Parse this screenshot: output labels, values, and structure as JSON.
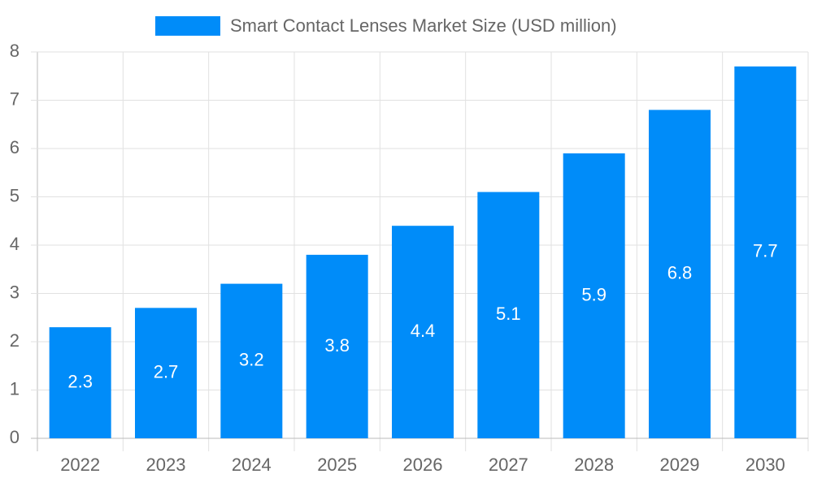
{
  "chart_data": {
    "type": "bar",
    "categories": [
      "2022",
      "2023",
      "2024",
      "2025",
      "2026",
      "2027",
      "2028",
      "2029",
      "2030"
    ],
    "series": [
      {
        "name": "Smart Contact Lenses Market Size (USD million)",
        "color": "#008cf9",
        "values": [
          2.3,
          2.7,
          3.2,
          3.8,
          4.4,
          5.1,
          5.9,
          6.8,
          7.7
        ]
      }
    ],
    "ylim": [
      0,
      8
    ],
    "yticks": [
      0,
      1,
      2,
      3,
      4,
      5,
      6,
      7,
      8
    ],
    "grid": true,
    "legend": "top"
  }
}
